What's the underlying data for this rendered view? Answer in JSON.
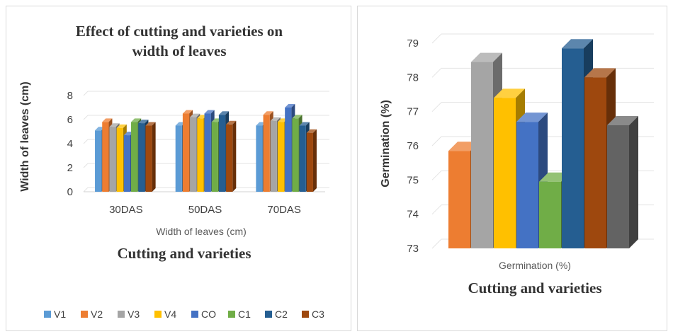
{
  "chart_data": [
    {
      "type": "bar",
      "title": "Effect of cutting and varieties on width of leaves",
      "title_lines": [
        "Effect of cutting and varieties on",
        "width of leaves"
      ],
      "ylabel": "Width of leaves (cm)",
      "xlabel": "Width of leaves (cm)",
      "caption": "Cutting and varieties",
      "categories": [
        "30DAS",
        "50DAS",
        "70DAS"
      ],
      "ylim": [
        0,
        8
      ],
      "yticks": [
        0,
        2,
        4,
        6,
        8
      ],
      "grid": true,
      "legend": "bottom",
      "series": [
        {
          "name": "V1",
          "color": "#5b9bd5",
          "values": [
            5.1,
            5.5,
            5.5
          ]
        },
        {
          "name": "V2",
          "color": "#ed7d31",
          "values": [
            5.8,
            6.5,
            6.4
          ]
        },
        {
          "name": "V3",
          "color": "#a5a5a5",
          "values": [
            5.4,
            6.2,
            5.9
          ]
        },
        {
          "name": "V4",
          "color": "#ffc000",
          "values": [
            5.3,
            6.1,
            5.8
          ]
        },
        {
          "name": "CO",
          "color": "#4472c4",
          "values": [
            4.7,
            6.5,
            7.0
          ]
        },
        {
          "name": "C1",
          "color": "#70ad47",
          "values": [
            5.8,
            5.8,
            6.1
          ]
        },
        {
          "name": "C2",
          "color": "#255e91",
          "values": [
            5.7,
            6.4,
            5.5
          ]
        },
        {
          "name": "C3",
          "color": "#9e480e",
          "values": [
            5.5,
            5.6,
            4.9
          ]
        }
      ]
    },
    {
      "type": "bar",
      "ylabel": "Germination (%)",
      "xlabel": "Germination (%)",
      "caption": "Cutting and varieties",
      "ylim": [
        73,
        79
      ],
      "yticks": [
        73,
        74,
        75,
        76,
        77,
        78,
        79
      ],
      "grid": true,
      "series": [
        {
          "color": "#ed7d31",
          "value": 75.85
        },
        {
          "color": "#a5a5a5",
          "value": 78.45
        },
        {
          "color": "#ffc000",
          "value": 77.4
        },
        {
          "color": "#4472c4",
          "value": 76.7
        },
        {
          "color": "#70ad47",
          "value": 74.95
        },
        {
          "color": "#255e91",
          "value": 78.85
        },
        {
          "color": "#9e480e",
          "value": 78.0
        },
        {
          "color": "#636363",
          "value": 76.6
        }
      ]
    }
  ]
}
